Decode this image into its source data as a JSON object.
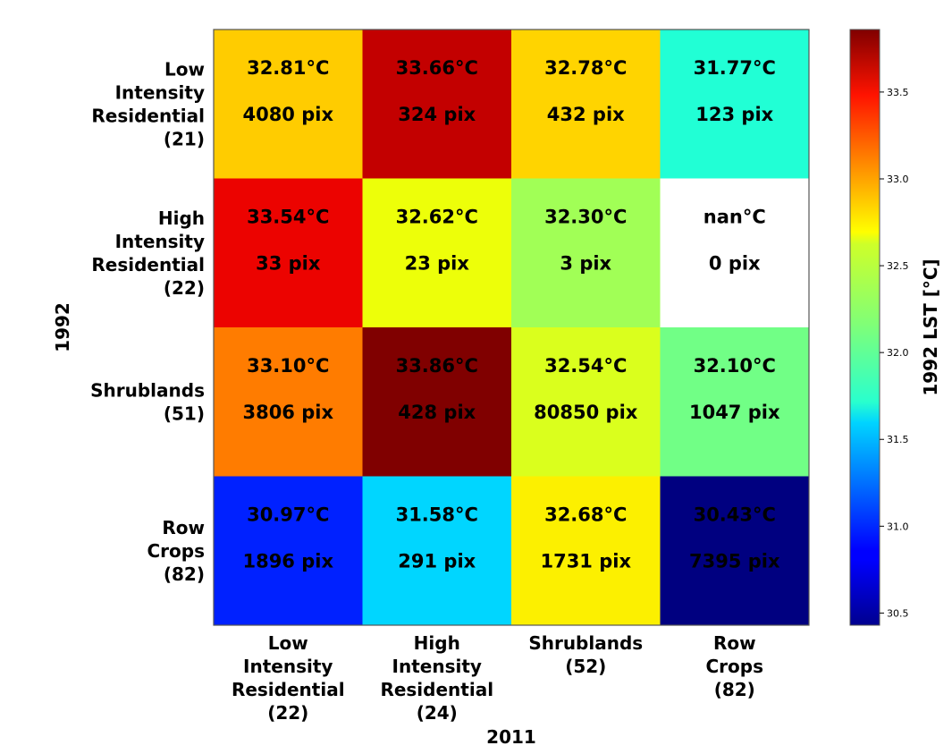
{
  "chart_data": {
    "type": "heatmap",
    "title": "",
    "xlabel": "2011",
    "ylabel": "1992",
    "x_categories": [
      [
        "Low",
        "Intensity",
        "Residential",
        "(22)"
      ],
      [
        "High",
        "Intensity",
        "Residential",
        "(24)"
      ],
      [
        "Shrublands",
        "(52)"
      ],
      [
        "Row",
        "Crops",
        "(82)"
      ]
    ],
    "y_categories": [
      [
        "Low",
        "Intensity",
        "Residential",
        "(21)"
      ],
      [
        "High",
        "Intensity",
        "Residential",
        "(22)"
      ],
      [
        "Shrublands",
        "(51)"
      ],
      [
        "Row",
        "Crops",
        "(82)"
      ]
    ],
    "values": [
      [
        32.81,
        33.66,
        32.78,
        31.77
      ],
      [
        33.54,
        32.62,
        32.3,
        null
      ],
      [
        33.1,
        33.86,
        32.54,
        32.1
      ],
      [
        30.97,
        31.58,
        32.68,
        30.43
      ]
    ],
    "cell_labels": [
      [
        [
          "32.81°C",
          "4080 pix"
        ],
        [
          "33.66°C",
          "324 pix"
        ],
        [
          "32.78°C",
          "432 pix"
        ],
        [
          "31.77°C",
          "123 pix"
        ]
      ],
      [
        [
          "33.54°C",
          "33 pix"
        ],
        [
          "32.62°C",
          "23 pix"
        ],
        [
          "32.30°C",
          "3 pix"
        ],
        [
          "nan°C",
          "0 pix"
        ]
      ],
      [
        [
          "33.10°C",
          "3806 pix"
        ],
        [
          "33.86°C",
          "428 pix"
        ],
        [
          "32.54°C",
          "80850 pix"
        ],
        [
          "32.10°C",
          "1047 pix"
        ]
      ],
      [
        [
          "30.97°C",
          "1896 pix"
        ],
        [
          "31.58°C",
          "291 pix"
        ],
        [
          "32.68°C",
          "1731 pix"
        ],
        [
          "30.43°C",
          "7395 pix"
        ]
      ]
    ],
    "pixel_counts": [
      [
        4080,
        324,
        432,
        123
      ],
      [
        33,
        23,
        3,
        0
      ],
      [
        3806,
        428,
        80850,
        1047
      ],
      [
        1896,
        291,
        1731,
        7395
      ]
    ],
    "colormap": "jet",
    "colorbar": {
      "label": "1992 LST [°C]",
      "range": [
        30.43,
        33.86
      ],
      "ticks": [
        30.5,
        31.0,
        31.5,
        32.0,
        32.5,
        33.0,
        33.5
      ],
      "tick_labels": [
        "30.5",
        "31.0",
        "31.5",
        "32.0",
        "32.5",
        "33.0",
        "33.5"
      ],
      "placement": "right"
    },
    "nan_color": "#ffffff",
    "grid": false
  }
}
